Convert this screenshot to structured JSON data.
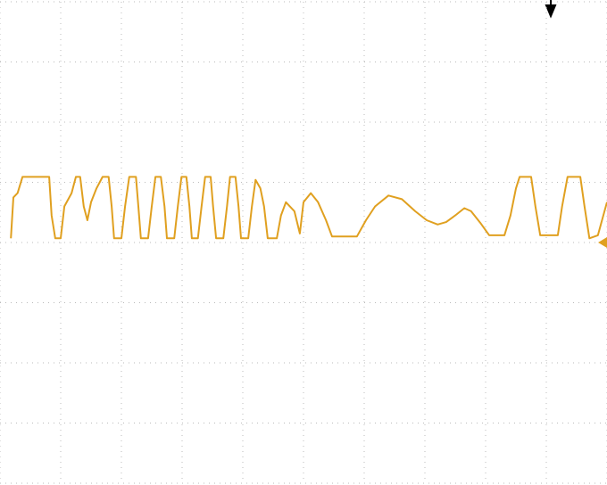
{
  "chart_data": {
    "type": "line",
    "x": [
      0.18,
      0.22,
      0.29,
      0.37,
      0.81,
      0.85,
      0.91,
      1.0,
      1.06,
      1.18,
      1.25,
      1.32,
      1.38,
      1.44,
      1.5,
      1.59,
      1.69,
      1.79,
      1.84,
      1.88,
      2.0,
      2.06,
      2.13,
      2.24,
      2.28,
      2.32,
      2.44,
      2.5,
      2.56,
      2.65,
      2.71,
      2.75,
      2.87,
      2.93,
      2.99,
      3.07,
      3.12,
      3.16,
      3.26,
      3.32,
      3.38,
      3.47,
      3.51,
      3.56,
      3.68,
      3.74,
      3.79,
      3.88,
      3.93,
      3.97,
      4.09,
      4.15,
      4.21,
      4.29,
      4.35,
      4.41,
      4.56,
      4.63,
      4.71,
      4.85,
      4.94,
      5.0,
      5.12,
      5.24,
      5.37,
      5.47,
      5.88,
      6.03,
      6.18,
      6.4,
      6.62,
      6.84,
      7.03,
      7.21,
      7.35,
      7.5,
      7.65,
      7.76,
      7.91,
      8.06,
      8.31,
      8.41,
      8.5,
      8.56,
      8.75,
      8.82,
      8.9,
      9.19,
      9.26,
      9.35,
      9.56,
      9.63,
      9.71,
      9.85,
      9.94,
      10.0
    ],
    "values": [
      0.07,
      0.75,
      0.82,
      1.09,
      1.09,
      0.45,
      0.07,
      0.07,
      0.6,
      0.82,
      1.09,
      1.09,
      0.6,
      0.37,
      0.67,
      0.9,
      1.09,
      1.09,
      0.6,
      0.07,
      0.07,
      0.6,
      1.09,
      1.09,
      0.6,
      0.07,
      0.07,
      0.6,
      1.09,
      1.09,
      0.6,
      0.07,
      0.07,
      0.6,
      1.09,
      1.09,
      0.6,
      0.07,
      0.07,
      0.6,
      1.09,
      1.09,
      0.6,
      0.07,
      0.07,
      0.6,
      1.09,
      1.09,
      0.6,
      0.07,
      0.07,
      0.6,
      1.04,
      0.9,
      0.6,
      0.07,
      0.07,
      0.45,
      0.67,
      0.52,
      0.15,
      0.67,
      0.82,
      0.67,
      0.37,
      0.1,
      0.1,
      0.37,
      0.6,
      0.78,
      0.72,
      0.52,
      0.37,
      0.3,
      0.34,
      0.45,
      0.57,
      0.52,
      0.33,
      0.12,
      0.12,
      0.45,
      0.9,
      1.09,
      1.09,
      0.6,
      0.12,
      0.12,
      0.6,
      1.09,
      1.09,
      0.6,
      0.07,
      0.12,
      0.45,
      0.67
    ],
    "color": "#e0a020",
    "xlim": [
      0,
      10
    ],
    "ylim": [
      -4,
      4
    ],
    "xticks": [
      0,
      1,
      2,
      3,
      4,
      5,
      6,
      7,
      8,
      9,
      10
    ],
    "yticks": [
      -4,
      -3,
      -2,
      -1,
      0,
      1,
      2,
      3,
      4
    ],
    "grid": true
  }
}
